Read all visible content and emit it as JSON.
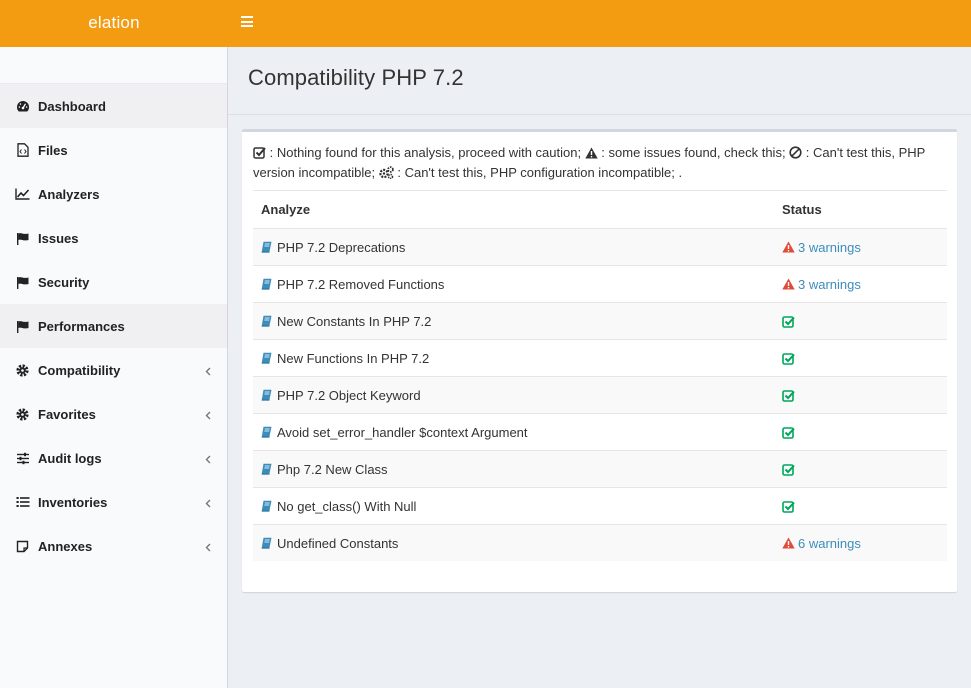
{
  "app": {
    "logo_text": "elation"
  },
  "colors": {
    "accent": "#f39c12",
    "link": "#3c8dbc",
    "ok": "#00a65a",
    "warning": "#dd4b39"
  },
  "sidebar": {
    "items": [
      {
        "label": "Dashboard",
        "icon": "dashboard-icon",
        "active": true
      },
      {
        "label": "Files",
        "icon": "file-code-icon"
      },
      {
        "label": "Analyzers",
        "icon": "line-chart-icon"
      },
      {
        "label": "Issues",
        "icon": "flag-icon"
      },
      {
        "label": "Security",
        "icon": "flag-icon"
      },
      {
        "label": "Performances",
        "icon": "flag-icon",
        "active": true
      },
      {
        "label": "Compatibility",
        "icon": "gear-icon",
        "has_submenu": true
      },
      {
        "label": "Favorites",
        "icon": "gear-icon",
        "has_submenu": true
      },
      {
        "label": "Audit logs",
        "icon": "sliders-icon",
        "has_submenu": true
      },
      {
        "label": "Inventories",
        "icon": "list-icon",
        "has_submenu": true
      },
      {
        "label": "Annexes",
        "icon": "sticky-note-icon",
        "has_submenu": true
      }
    ]
  },
  "page": {
    "title": "Compatibility PHP 7.2"
  },
  "legend": {
    "ok_text": " : Nothing found for this analysis, proceed with caution; ",
    "warn_text": " : some issues found, check this; ",
    "ban_text": " : Can't test this, PHP version incompatible; ",
    "config_text": " : Can't test this, PHP configuration incompatible; ."
  },
  "table": {
    "headers": {
      "analyze": "Analyze",
      "status": "Status"
    },
    "rows": [
      {
        "name": "PHP 7.2 Deprecations",
        "status": "warning",
        "warnings": "3 warnings"
      },
      {
        "name": "PHP 7.2 Removed Functions",
        "status": "warning",
        "warnings": "3 warnings"
      },
      {
        "name": "New Constants In PHP 7.2",
        "status": "ok"
      },
      {
        "name": "New Functions In PHP 7.2",
        "status": "ok"
      },
      {
        "name": "PHP 7.2 Object Keyword",
        "status": "ok"
      },
      {
        "name": "Avoid set_error_handler $context Argument",
        "status": "ok"
      },
      {
        "name": "Php 7.2 New Class",
        "status": "ok"
      },
      {
        "name": "No get_class() With Null",
        "status": "ok"
      },
      {
        "name": "Undefined Constants",
        "status": "warning",
        "warnings": "6 warnings"
      }
    ]
  }
}
